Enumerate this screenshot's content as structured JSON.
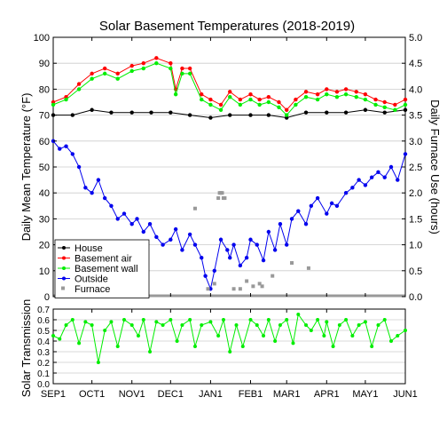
{
  "chart_data": [
    {
      "type": "line",
      "title": "Solar Basement Temperatures (2018-2019)",
      "ylabel": "Daily Mean Temperature (°F)",
      "y2label": "Daily Furnace Use (hours)",
      "ylim": [
        0,
        100
      ],
      "y2lim": [
        0,
        5
      ],
      "yticks": [
        "0",
        "10",
        "20",
        "30",
        "40",
        "50",
        "60",
        "70",
        "80",
        "90",
        "100"
      ],
      "y2ticks": [
        "0.0",
        "0.5",
        "1.0",
        "1.5",
        "2.0",
        "2.5",
        "3.0",
        "3.5",
        "4.0",
        "4.5",
        "5.0"
      ],
      "xticks": [
        "SEP1",
        "OCT1",
        "NOV1",
        "DEC1",
        "JAN1",
        "FEB1",
        "MAR1",
        "APR1",
        "MAY1",
        "JUN1"
      ],
      "xtick_days": [
        0,
        30,
        61,
        91,
        122,
        153,
        181,
        212,
        242,
        273
      ],
      "grid": true,
      "legend_position": "bottom-left",
      "legend": [
        "House",
        "Basement air",
        "Basement wall",
        "Outside",
        "Furnace"
      ],
      "colors": {
        "house": "#000000",
        "air": "#ff0000",
        "wall": "#00ee00",
        "outside": "#0000ee",
        "furnace": "#999999"
      },
      "x_unit": "day since Sep 1 2018",
      "series": [
        {
          "name": "House",
          "points": [
            [
              0,
              70
            ],
            [
              15,
              70
            ],
            [
              30,
              72
            ],
            [
              45,
              71
            ],
            [
              61,
              71
            ],
            [
              76,
              71
            ],
            [
              91,
              71
            ],
            [
              106,
              70
            ],
            [
              122,
              69
            ],
            [
              137,
              70
            ],
            [
              153,
              70
            ],
            [
              167,
              70
            ],
            [
              181,
              69
            ],
            [
              196,
              71
            ],
            [
              212,
              71
            ],
            [
              227,
              71
            ],
            [
              242,
              72
            ],
            [
              257,
              71
            ],
            [
              273,
              72
            ]
          ]
        },
        {
          "name": "Basement air",
          "points": [
            [
              0,
              75
            ],
            [
              10,
              77
            ],
            [
              20,
              82
            ],
            [
              30,
              86
            ],
            [
              40,
              88
            ],
            [
              50,
              86
            ],
            [
              61,
              89
            ],
            [
              70,
              90
            ],
            [
              80,
              92
            ],
            [
              91,
              90
            ],
            [
              95,
              80
            ],
            [
              100,
              88
            ],
            [
              106,
              88
            ],
            [
              115,
              78
            ],
            [
              122,
              76
            ],
            [
              130,
              74
            ],
            [
              137,
              79
            ],
            [
              145,
              76
            ],
            [
              153,
              78
            ],
            [
              160,
              76
            ],
            [
              167,
              77
            ],
            [
              175,
              75
            ],
            [
              181,
              72
            ],
            [
              188,
              76
            ],
            [
              196,
              79
            ],
            [
              205,
              78
            ],
            [
              212,
              80
            ],
            [
              220,
              79
            ],
            [
              227,
              80
            ],
            [
              235,
              79
            ],
            [
              242,
              78
            ],
            [
              250,
              76
            ],
            [
              257,
              75
            ],
            [
              265,
              74
            ],
            [
              273,
              76
            ]
          ]
        },
        {
          "name": "Basement wall",
          "points": [
            [
              0,
              74
            ],
            [
              10,
              76
            ],
            [
              20,
              80
            ],
            [
              30,
              84
            ],
            [
              40,
              86
            ],
            [
              50,
              84
            ],
            [
              61,
              87
            ],
            [
              70,
              88
            ],
            [
              80,
              90
            ],
            [
              91,
              88
            ],
            [
              95,
              78
            ],
            [
              100,
              86
            ],
            [
              106,
              86
            ],
            [
              115,
              76
            ],
            [
              122,
              74
            ],
            [
              130,
              72
            ],
            [
              137,
              77
            ],
            [
              145,
              74
            ],
            [
              153,
              76
            ],
            [
              160,
              74
            ],
            [
              167,
              75
            ],
            [
              175,
              73
            ],
            [
              181,
              70
            ],
            [
              188,
              74
            ],
            [
              196,
              77
            ],
            [
              205,
              76
            ],
            [
              212,
              78
            ],
            [
              220,
              77
            ],
            [
              227,
              78
            ],
            [
              235,
              77
            ],
            [
              242,
              76
            ],
            [
              250,
              74
            ],
            [
              257,
              73
            ],
            [
              265,
              72
            ],
            [
              273,
              74
            ]
          ]
        },
        {
          "name": "Outside",
          "points": [
            [
              0,
              60
            ],
            [
              5,
              57
            ],
            [
              10,
              58
            ],
            [
              15,
              55
            ],
            [
              20,
              50
            ],
            [
              25,
              42
            ],
            [
              30,
              40
            ],
            [
              35,
              45
            ],
            [
              40,
              38
            ],
            [
              45,
              35
            ],
            [
              50,
              30
            ],
            [
              55,
              32
            ],
            [
              61,
              28
            ],
            [
              65,
              30
            ],
            [
              70,
              25
            ],
            [
              75,
              28
            ],
            [
              80,
              23
            ],
            [
              85,
              20
            ],
            [
              91,
              22
            ],
            [
              95,
              26
            ],
            [
              100,
              18
            ],
            [
              106,
              24
            ],
            [
              110,
              20
            ],
            [
              115,
              15
            ],
            [
              118,
              8
            ],
            [
              122,
              3
            ],
            [
              125,
              10
            ],
            [
              130,
              22
            ],
            [
              135,
              18
            ],
            [
              137,
              15
            ],
            [
              140,
              20
            ],
            [
              145,
              12
            ],
            [
              150,
              15
            ],
            [
              153,
              22
            ],
            [
              158,
              20
            ],
            [
              163,
              14
            ],
            [
              167,
              25
            ],
            [
              172,
              18
            ],
            [
              176,
              28
            ],
            [
              181,
              20
            ],
            [
              185,
              30
            ],
            [
              190,
              33
            ],
            [
              196,
              28
            ],
            [
              200,
              35
            ],
            [
              205,
              38
            ],
            [
              212,
              32
            ],
            [
              216,
              36
            ],
            [
              220,
              35
            ],
            [
              227,
              40
            ],
            [
              232,
              42
            ],
            [
              237,
              45
            ],
            [
              242,
              43
            ],
            [
              247,
              46
            ],
            [
              252,
              48
            ],
            [
              257,
              46
            ],
            [
              262,
              50
            ],
            [
              267,
              45
            ],
            [
              273,
              55
            ]
          ]
        },
        {
          "name": "Furnace",
          "points": [
            [
              110,
              1.7
            ],
            [
              128,
              1.9
            ],
            [
              129,
              2.0
            ],
            [
              130,
              2.0
            ],
            [
              131,
              2.0
            ],
            [
              132,
              1.9
            ],
            [
              133,
              1.9
            ],
            [
              120,
              0.15
            ],
            [
              125,
              0.25
            ],
            [
              150,
              0.3
            ],
            [
              155,
              0.2
            ],
            [
              160,
              0.25
            ],
            [
              162,
              0.2
            ],
            [
              170,
              0.4
            ],
            [
              185,
              0.65
            ],
            [
              198,
              0.55
            ],
            [
              145,
              0.15
            ],
            [
              140,
              0.15
            ]
          ]
        }
      ]
    },
    {
      "type": "line",
      "ylabel": "Solar Transmission",
      "ylim": [
        0,
        0.7
      ],
      "yticks": [
        "0.0",
        "0.1",
        "0.2",
        "0.3",
        "0.4",
        "0.5",
        "0.6",
        "0.7"
      ],
      "xticks": [
        "SEP1",
        "OCT1",
        "NOV1",
        "DEC1",
        "JAN1",
        "FEB1",
        "MAR1",
        "APR1",
        "MAY1",
        "JUN1"
      ],
      "grid": true,
      "colors": {
        "transmission": "#00ee00"
      },
      "series": [
        {
          "name": "Solar Transmission",
          "points": [
            [
              0,
              0.45
            ],
            [
              5,
              0.42
            ],
            [
              10,
              0.55
            ],
            [
              15,
              0.6
            ],
            [
              20,
              0.38
            ],
            [
              25,
              0.58
            ],
            [
              30,
              0.55
            ],
            [
              35,
              0.2
            ],
            [
              40,
              0.5
            ],
            [
              45,
              0.58
            ],
            [
              50,
              0.35
            ],
            [
              55,
              0.6
            ],
            [
              61,
              0.55
            ],
            [
              66,
              0.45
            ],
            [
              70,
              0.6
            ],
            [
              75,
              0.3
            ],
            [
              80,
              0.58
            ],
            [
              85,
              0.55
            ],
            [
              91,
              0.6
            ],
            [
              96,
              0.4
            ],
            [
              100,
              0.55
            ],
            [
              106,
              0.6
            ],
            [
              110,
              0.35
            ],
            [
              115,
              0.55
            ],
            [
              122,
              0.58
            ],
            [
              128,
              0.45
            ],
            [
              132,
              0.6
            ],
            [
              137,
              0.3
            ],
            [
              142,
              0.55
            ],
            [
              147,
              0.35
            ],
            [
              153,
              0.6
            ],
            [
              158,
              0.55
            ],
            [
              163,
              0.45
            ],
            [
              167,
              0.6
            ],
            [
              172,
              0.4
            ],
            [
              176,
              0.55
            ],
            [
              181,
              0.6
            ],
            [
              186,
              0.38
            ],
            [
              190,
              0.65
            ],
            [
              196,
              0.55
            ],
            [
              200,
              0.5
            ],
            [
              205,
              0.6
            ],
            [
              210,
              0.45
            ],
            [
              212,
              0.58
            ],
            [
              217,
              0.35
            ],
            [
              222,
              0.55
            ],
            [
              227,
              0.6
            ],
            [
              232,
              0.45
            ],
            [
              237,
              0.55
            ],
            [
              242,
              0.58
            ],
            [
              247,
              0.35
            ],
            [
              252,
              0.55
            ],
            [
              257,
              0.6
            ],
            [
              262,
              0.4
            ],
            [
              267,
              0.45
            ],
            [
              273,
              0.5
            ]
          ]
        }
      ]
    }
  ]
}
